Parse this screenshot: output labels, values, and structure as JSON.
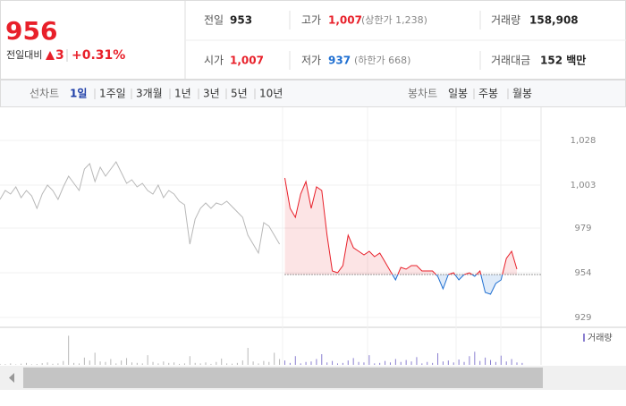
{
  "header": {
    "price": 956,
    "change_label": "전일대비",
    "change": 3,
    "change_pct": "+0.31%"
  },
  "summary": {
    "prev_close": {
      "label": "전일",
      "value": 953
    },
    "high": {
      "label": "고가",
      "value": "1,007",
      "limit": "(상한가 1,238)"
    },
    "volume": {
      "label": "거래량",
      "value": "158,908"
    },
    "open": {
      "label": "시가",
      "value": "1,007"
    },
    "low": {
      "label": "저가",
      "value": "937",
      "limit": "(하한가 668)"
    },
    "amount": {
      "label": "거래대금",
      "value": "152 백만"
    }
  },
  "tabs": {
    "line_label": "선차트",
    "line_periods": [
      "1일",
      "1주일",
      "3개월",
      "1년",
      "3년",
      "5년",
      "10년"
    ],
    "candle_label": "봉차트",
    "candle_periods": [
      "일봉",
      "주봉",
      "월봉"
    ]
  },
  "chart_data": {
    "type": "line",
    "ylim": [
      924,
      1044
    ],
    "yticks": [
      {
        "value": 1028,
        "label": "1,028"
      },
      {
        "value": 1003,
        "label": "1,003"
      },
      979,
      954,
      929
    ],
    "series": [
      {
        "color": "#b8b8b8",
        "values": [
          995,
          1000,
          998,
          1002,
          996,
          1000,
          997,
          990,
          998,
          1003,
          1000,
          995,
          1002,
          1008,
          1004,
          1000,
          1012,
          1015,
          1005,
          1013,
          1008,
          1012,
          1016,
          1010,
          1004,
          1006,
          1002,
          1004,
          1000,
          998,
          1003,
          996,
          1000,
          998,
          994,
          992,
          970,
          984,
          990,
          993,
          990,
          993,
          992,
          994,
          991,
          988,
          985,
          975,
          970,
          965,
          982,
          980,
          975,
          970,
          null,
          null,
          null,
          null,
          null,
          null,
          null,
          null,
          null,
          null,
          null,
          null,
          null,
          null,
          null,
          null,
          null,
          null,
          null,
          null,
          null,
          null,
          null,
          null,
          null,
          null,
          null,
          null,
          null,
          null,
          null,
          null,
          null,
          null,
          null,
          null,
          null,
          null,
          null,
          null,
          null,
          null,
          null,
          null,
          null,
          null
        ]
      },
      {
        "color": "#e8202a",
        "values": [
          null,
          null,
          null,
          null,
          null,
          null,
          null,
          null,
          null,
          null,
          null,
          null,
          null,
          null,
          null,
          null,
          null,
          null,
          null,
          null,
          null,
          null,
          null,
          null,
          null,
          null,
          null,
          null,
          null,
          null,
          null,
          null,
          null,
          null,
          null,
          null,
          null,
          null,
          null,
          null,
          null,
          null,
          null,
          null,
          null,
          null,
          null,
          null,
          null,
          null,
          null,
          null,
          null,
          null,
          1007,
          990,
          985,
          998,
          1005,
          990,
          1002,
          1000,
          975,
          955,
          954,
          958,
          975,
          968,
          966,
          964,
          966,
          963,
          965,
          960,
          955,
          950,
          957,
          956,
          958,
          958,
          955,
          955,
          955,
          952,
          945,
          953,
          954,
          950,
          953,
          954,
          952,
          955,
          943,
          942,
          948,
          950,
          962,
          966,
          956,
          null
        ]
      }
    ],
    "down_color": "#1f6fd1",
    "volume_label": "거래량",
    "volume_color": "#8a7fd0",
    "vlim": [
      0,
      7000
    ],
    "volume": [
      200,
      150,
      300,
      100,
      250,
      400,
      120,
      180,
      350,
      500,
      220,
      300,
      800,
      6000,
      400,
      300,
      1500,
      900,
      2500,
      700,
      600,
      1200,
      300,
      900,
      1400,
      500,
      400,
      300,
      2000,
      600,
      300,
      700,
      400,
      500,
      200,
      300,
      1800,
      400,
      300,
      500,
      200,
      600,
      1300,
      300,
      250,
      400,
      900,
      3500,
      700,
      300,
      800,
      600,
      2500,
      1200,
      900,
      400,
      1800,
      300,
      600,
      700,
      1200,
      2200,
      500,
      800,
      300,
      400,
      900,
      1400,
      600,
      500,
      2000,
      300,
      400,
      800,
      500,
      1200,
      600,
      1000,
      700,
      1600,
      300,
      600,
      400,
      2400,
      700,
      900,
      500,
      1100,
      600,
      1800,
      2700,
      800,
      1500,
      1000,
      600,
      1900,
      700,
      1200,
      500,
      400
    ]
  }
}
